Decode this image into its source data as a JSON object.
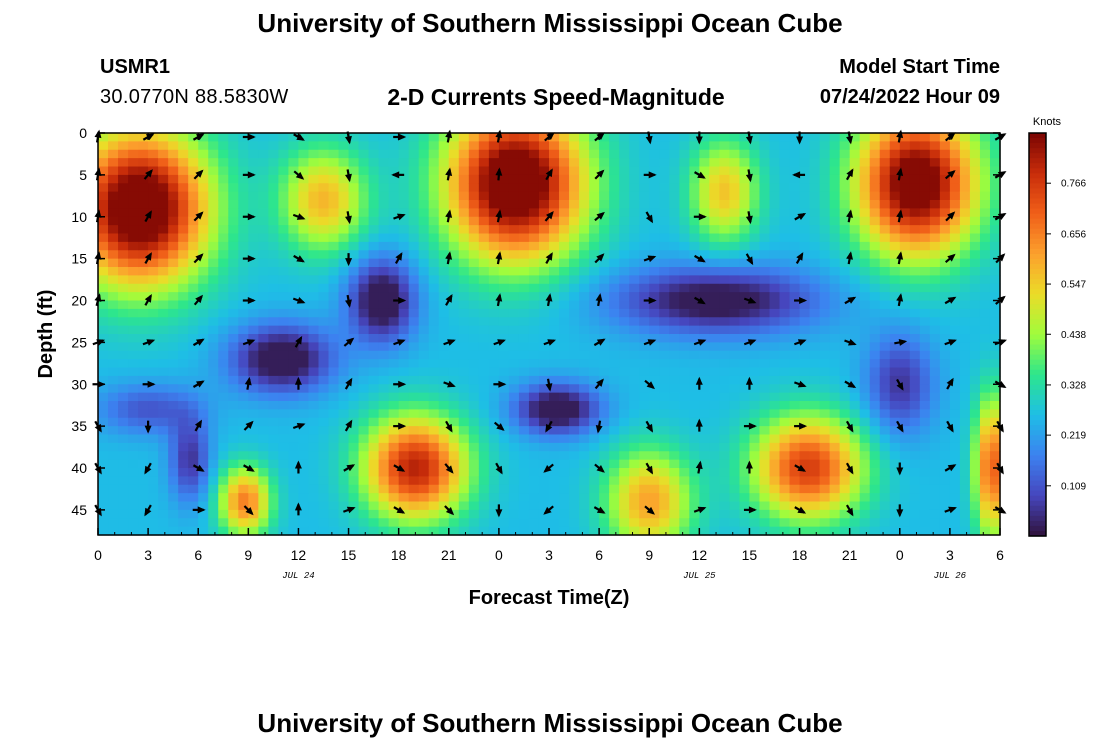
{
  "header": {
    "title": "University of Southern Mississippi Ocean Cube",
    "station": "USMR1",
    "coords": "30.0770N  88.5830W",
    "subtitle": "2-D Currents Speed-Magnitude",
    "model_start_label": "Model Start Time",
    "model_start_value": "07/24/2022 Hour 09"
  },
  "footer": {
    "title": "University of Southern Mississippi Ocean Cube"
  },
  "colors": {
    "low": "#30123b",
    "high": "#7a0403",
    "arrow": "#000000"
  },
  "chart_data": {
    "type": "heatmap",
    "variable": "current speed magnitude with direction vectors",
    "xlabel": "Forecast Time(Z)",
    "ylabel": "Depth (ft)",
    "x_ticks": [
      "0",
      "3",
      "6",
      "9",
      "12",
      "15",
      "18",
      "21",
      "0",
      "3",
      "6",
      "9",
      "12",
      "15",
      "18",
      "21",
      "0",
      "3",
      "6"
    ],
    "date_labels": [
      {
        "text": "JUL 24",
        "x_hours": 12
      },
      {
        "text": "JUL 25",
        "x_hours": 36
      },
      {
        "text": "JUL 26",
        "x_hours": 51
      }
    ],
    "xlim_hours": [
      0,
      54
    ],
    "y_ticks": [
      "0",
      "5",
      "10",
      "15",
      "20",
      "25",
      "30",
      "35",
      "40",
      "45"
    ],
    "ylim_ft": [
      0,
      48
    ],
    "colorbar": {
      "title": "Knots",
      "ticks": [
        "0.766",
        "0.656",
        "0.547",
        "0.438",
        "0.328",
        "0.219",
        "0.109"
      ],
      "range": [
        0,
        0.875
      ]
    },
    "speed_model": {
      "blobs": [
        {
          "t": 2.5,
          "d": 9,
          "st": 4,
          "sd": 9,
          "a": 0.72
        },
        {
          "t": 25,
          "d": 6,
          "st": 4,
          "sd": 9,
          "a": 0.72
        },
        {
          "t": 49,
          "d": 6,
          "st": 3.5,
          "sd": 8.5,
          "a": 0.68
        },
        {
          "t": 19,
          "d": 40,
          "st": 3,
          "sd": 6,
          "a": 0.55
        },
        {
          "t": 42.5,
          "d": 40,
          "st": 3.2,
          "sd": 6,
          "a": 0.5
        },
        {
          "t": 33,
          "d": 44,
          "st": 2.5,
          "sd": 6,
          "a": 0.35
        },
        {
          "t": 8.8,
          "d": 44,
          "st": 1.5,
          "sd": 4,
          "a": 0.4
        },
        {
          "t": 13.5,
          "d": 8,
          "st": 2.5,
          "sd": 6,
          "a": 0.32
        },
        {
          "t": 37.5,
          "d": 7,
          "st": 2,
          "sd": 6,
          "a": 0.3
        },
        {
          "t": 53.5,
          "d": 40,
          "st": 1,
          "sd": 8,
          "a": 0.45
        }
      ],
      "cuts": [
        {
          "t": 11,
          "d": 27,
          "st": 3,
          "sd": 4,
          "a": 0.3
        },
        {
          "t": 17,
          "d": 20,
          "st": 2,
          "sd": 5,
          "a": 0.3
        },
        {
          "t": 3,
          "d": 33,
          "st": 3,
          "sd": 3,
          "a": 0.15
        },
        {
          "t": 5.5,
          "d": 39,
          "st": 1.2,
          "sd": 5,
          "a": 0.2
        },
        {
          "t": 27.5,
          "d": 33,
          "st": 2.5,
          "sd": 3,
          "a": 0.3
        },
        {
          "t": 37,
          "d": 20,
          "st": 6,
          "sd": 4,
          "a": 0.28
        },
        {
          "t": 48,
          "d": 30,
          "st": 2,
          "sd": 6,
          "a": 0.2
        }
      ],
      "base": 0.26
    },
    "arrows": {
      "x_hours": [
        0,
        3,
        6,
        9,
        12,
        15,
        18,
        21,
        24,
        27,
        30,
        33,
        36,
        39,
        42,
        45,
        48,
        51,
        54
      ],
      "depths_ft": [
        0,
        5,
        10,
        15,
        20,
        25,
        30,
        35,
        40,
        45
      ],
      "angles_deg": [
        [
          80,
          30,
          30,
          0,
          330,
          280,
          0,
          80,
          80,
          40,
          40,
          280,
          270,
          280,
          270,
          280,
          80,
          40,
          30
        ],
        [
          80,
          50,
          45,
          0,
          320,
          280,
          180,
          80,
          85,
          60,
          45,
          0,
          330,
          280,
          180,
          60,
          80,
          40,
          30
        ],
        [
          80,
          60,
          45,
          0,
          340,
          280,
          20,
          80,
          80,
          50,
          40,
          300,
          0,
          280,
          30,
          80,
          80,
          45,
          30
        ],
        [
          80,
          60,
          45,
          0,
          330,
          270,
          60,
          80,
          80,
          60,
          45,
          20,
          330,
          300,
          60,
          80,
          80,
          40,
          45
        ],
        [
          75,
          60,
          50,
          0,
          340,
          280,
          0,
          60,
          80,
          80,
          80,
          0,
          330,
          340,
          0,
          30,
          80,
          30,
          40
        ],
        [
          20,
          20,
          30,
          20,
          60,
          40,
          20,
          20,
          20,
          20,
          30,
          20,
          20,
          20,
          20,
          340,
          10,
          20,
          20
        ],
        [
          0,
          0,
          30,
          80,
          90,
          60,
          0,
          340,
          0,
          280,
          50,
          320,
          90,
          90,
          340,
          330,
          300,
          60,
          330
        ],
        [
          300,
          270,
          60,
          45,
          20,
          60,
          0,
          300,
          320,
          240,
          260,
          300,
          90,
          0,
          0,
          300,
          300,
          300,
          300
        ],
        [
          300,
          240,
          330,
          330,
          90,
          30,
          330,
          310,
          300,
          220,
          320,
          300,
          80,
          90,
          330,
          300,
          270,
          30,
          300
        ],
        [
          300,
          240,
          0,
          315,
          90,
          20,
          330,
          315,
          270,
          220,
          330,
          320,
          20,
          0,
          330,
          300,
          270,
          20,
          330
        ]
      ]
    }
  }
}
